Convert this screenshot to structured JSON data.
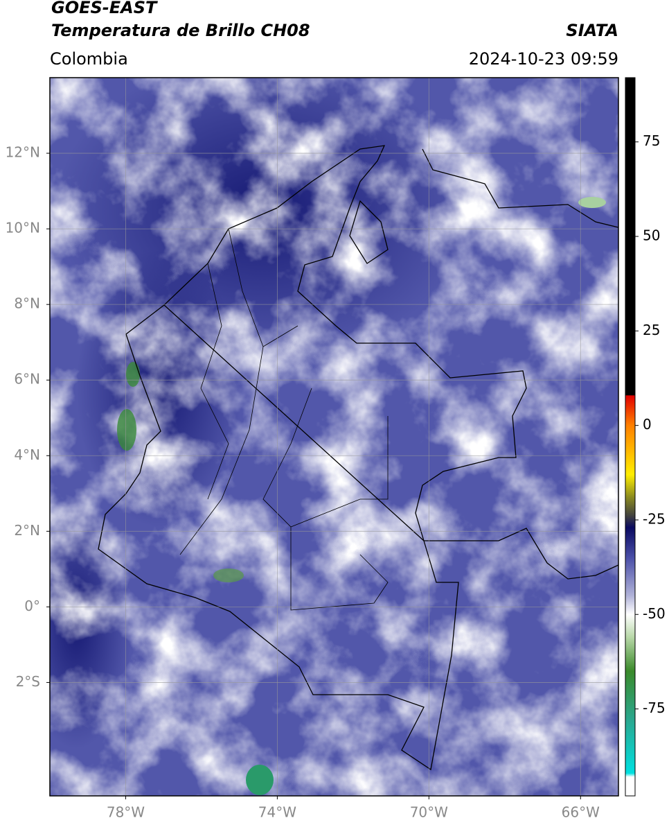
{
  "header": {
    "title": "GOES-EAST",
    "subtitle": "Temperatura de Brillo CH08",
    "source": "SIATA",
    "region": "Colombia",
    "datetime": "2024-10-23 09:59"
  },
  "map": {
    "xlim": [
      -80,
      -65
    ],
    "ylim": [
      -5,
      14
    ],
    "grid": true,
    "xticks": [
      {
        "value": -78,
        "label": "78°W"
      },
      {
        "value": -74,
        "label": "74°W"
      },
      {
        "value": -70,
        "label": "70°W"
      },
      {
        "value": -66,
        "label": "66°W"
      }
    ],
    "yticks": [
      {
        "value": 12,
        "label": "12°N"
      },
      {
        "value": 10,
        "label": "10°N"
      },
      {
        "value": 8,
        "label": "8°N"
      },
      {
        "value": 6,
        "label": "6°N"
      },
      {
        "value": 4,
        "label": "4°N"
      },
      {
        "value": 2,
        "label": "2°N"
      },
      {
        "value": 0,
        "label": "0°"
      },
      {
        "value": -2,
        "label": "2°S"
      }
    ]
  },
  "colorbar": {
    "clim": [
      -98,
      92
    ],
    "ticks": [
      75,
      50,
      25,
      0,
      -25,
      -50,
      -75
    ],
    "colormap": [
      {
        "value": 92,
        "color": "#000000"
      },
      {
        "value": 8,
        "color": "#000000"
      },
      {
        "value": 7.9,
        "color": "#e00000"
      },
      {
        "value": 0,
        "color": "#ff8000"
      },
      {
        "value": -13,
        "color": "#ffee00"
      },
      {
        "value": -19,
        "color": "#8a8a20"
      },
      {
        "value": -24,
        "color": "#404040"
      },
      {
        "value": -27,
        "color": "#0a0a60"
      },
      {
        "value": -35,
        "color": "#4a4fa8"
      },
      {
        "value": -45,
        "color": "#b0b2d8"
      },
      {
        "value": -50,
        "color": "#ffffff"
      },
      {
        "value": -56,
        "color": "#b8d8a8"
      },
      {
        "value": -65,
        "color": "#3a8a2a"
      },
      {
        "value": -78,
        "color": "#2aa890"
      },
      {
        "value": -92,
        "color": "#00e0e0"
      },
      {
        "value": -93,
        "color": "#ffffff"
      },
      {
        "value": -98,
        "color": "#ffffff"
      }
    ]
  }
}
